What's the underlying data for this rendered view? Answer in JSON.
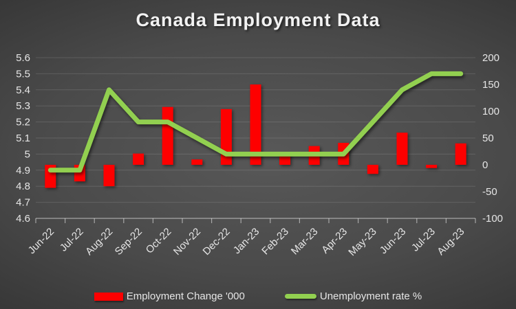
{
  "title": "Canada Employment Data",
  "colors": {
    "bar": "#fe0000",
    "line": "#92d050",
    "text": "#e6e6e6",
    "gridline": "rgba(255,255,255,0.13)",
    "axis": "rgba(255,255,255,0.50)",
    "background_center": "#585858",
    "background_edge": "#242424"
  },
  "chart_data": {
    "type": "bar",
    "subtype": "combo-bar-line-dual-axis",
    "title": "Canada Employment Data",
    "categories": [
      "Jun-22",
      "Jul-22",
      "Aug-22",
      "Sep-22",
      "Oct-22",
      "Nov-22",
      "Dec-22",
      "Jan-23",
      "Feb-23",
      "Mar-23",
      "Apr-23",
      "May-23",
      "Jun-23",
      "Jul-23",
      "Aug-23"
    ],
    "series": [
      {
        "name": "Employment Change '000",
        "type": "bar",
        "axis": "right",
        "color": "#fe0000",
        "values": [
          -43,
          -31,
          -40,
          21,
          108,
          10,
          104,
          150,
          22,
          35,
          41,
          -17,
          60,
          -6,
          40
        ]
      },
      {
        "name": "Unemployment rate %",
        "type": "line",
        "axis": "left",
        "color": "#92d050",
        "values": [
          4.9,
          4.9,
          5.4,
          5.2,
          5.2,
          5.1,
          5.0,
          5.0,
          5.0,
          5.0,
          5.0,
          5.2,
          5.4,
          5.5,
          5.5
        ]
      }
    ],
    "left_axis": {
      "min": 4.6,
      "max": 5.6,
      "step": 0.1,
      "ticks": [
        "5.6",
        "5.5",
        "5.4",
        "5.3",
        "5.2",
        "5.1",
        "5",
        "4.9",
        "4.8",
        "4.7",
        "4.6"
      ]
    },
    "right_axis": {
      "min": -100,
      "max": 200,
      "step": 50,
      "ticks": [
        "200",
        "150",
        "100",
        "50",
        "0",
        "-50",
        "-100"
      ]
    },
    "xlabel": "",
    "ylabel": "",
    "grid": true,
    "legend_position": "bottom"
  }
}
